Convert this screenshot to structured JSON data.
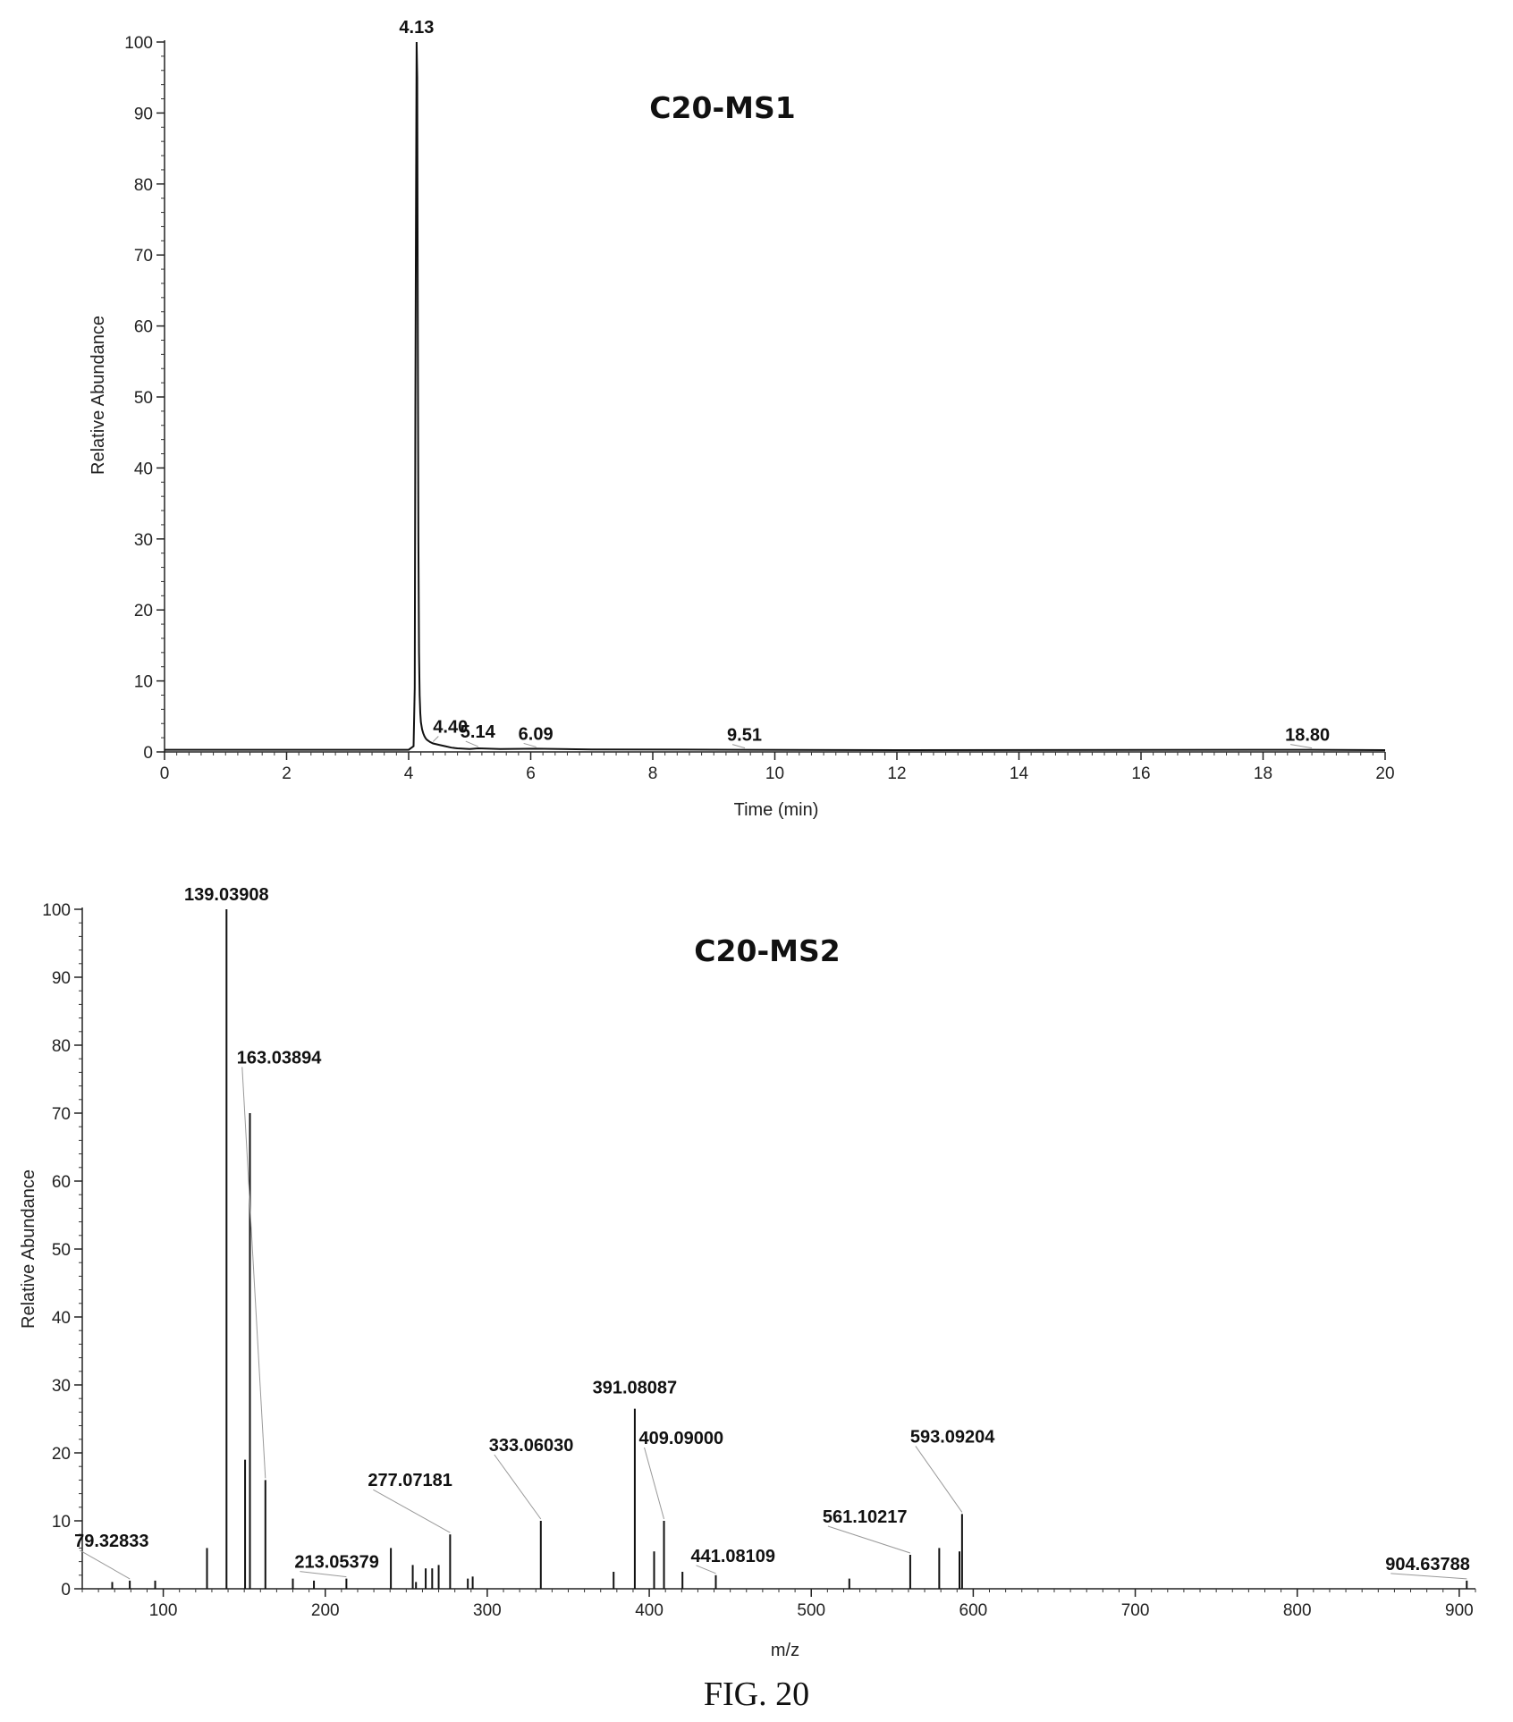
{
  "figure_caption": "FIG. 20",
  "chart_data": [
    {
      "type": "line",
      "title": "C20-MS1",
      "xlabel": "Time (min)",
      "ylabel": "Relative Abundance",
      "xlim": [
        0,
        20
      ],
      "ylim": [
        0,
        100
      ],
      "x_ticks": [
        0,
        2,
        4,
        6,
        8,
        10,
        12,
        14,
        16,
        18,
        20
      ],
      "y_ticks": [
        0,
        10,
        20,
        30,
        40,
        50,
        60,
        70,
        80,
        90,
        100
      ],
      "grid": false,
      "series": [
        {
          "x": [
            0,
            4.0,
            4.08,
            4.1,
            4.11,
            4.12,
            4.13,
            4.14,
            4.15,
            4.16,
            4.17,
            4.18,
            4.19,
            4.2,
            4.22,
            4.24,
            4.26,
            4.28,
            4.3,
            4.35,
            4.4,
            4.5,
            4.6,
            4.7,
            4.8,
            5.0,
            5.14,
            5.5,
            6.09,
            7.0,
            9.51,
            12,
            18.8,
            20
          ],
          "y": [
            0.3,
            0.3,
            0.8,
            9,
            48,
            76,
            100,
            95,
            62,
            30,
            14,
            8,
            5.5,
            4.2,
            3.2,
            2.6,
            2.2,
            1.9,
            1.7,
            1.4,
            1.2,
            1.0,
            0.8,
            0.6,
            0.5,
            0.4,
            0.5,
            0.4,
            0.45,
            0.35,
            0.3,
            0.25,
            0.3,
            0.25
          ]
        }
      ],
      "peak_labels": [
        {
          "text": "4.13",
          "x": 4.13,
          "y": 100
        },
        {
          "text": "4.40",
          "x": 4.4,
          "y": 1.2
        },
        {
          "text": "5.14",
          "x": 5.14,
          "y": 0.5
        },
        {
          "text": "6.09",
          "x": 6.09,
          "y": 0.45
        },
        {
          "text": "9.51",
          "x": 9.51,
          "y": 0.3
        },
        {
          "text": "18.80",
          "x": 18.8,
          "y": 0.3
        }
      ]
    },
    {
      "type": "bar",
      "title": "C20-MS2",
      "xlabel": "m/z",
      "ylabel": "Relative Abundance",
      "xlim": [
        50,
        910
      ],
      "ylim": [
        0,
        100
      ],
      "x_ticks": [
        100,
        200,
        300,
        400,
        500,
        600,
        700,
        800,
        900
      ],
      "y_ticks": [
        0,
        10,
        20,
        30,
        40,
        50,
        60,
        70,
        80,
        90,
        100
      ],
      "grid": false,
      "series": [
        {
          "x": [
            68.5,
            79.33,
            95,
            127,
            139.04,
            150.5,
            153.5,
            163.04,
            180,
            193,
            213.05,
            240.5,
            254,
            256,
            262,
            266,
            270,
            277.07,
            288,
            291,
            333.06,
            378,
            391.08,
            403,
            409.09,
            420.5,
            441.08,
            523.5,
            561.1,
            579,
            591.5,
            593.09,
            904.64
          ],
          "y": [
            1,
            1.2,
            1.2,
            6,
            100,
            19,
            70,
            16,
            1.5,
            1.2,
            1.5,
            6,
            3.5,
            1,
            3,
            3,
            3.5,
            8,
            1.5,
            1.8,
            10,
            2.5,
            26.5,
            5.5,
            10,
            2.5,
            2,
            1.5,
            5,
            6,
            5.5,
            11,
            1.2
          ]
        }
      ],
      "peak_labels": [
        {
          "text": "79.32833",
          "x": 79.33,
          "y": 1.2
        },
        {
          "text": "139.03908",
          "x": 139.04,
          "y": 100
        },
        {
          "text": "163.03894",
          "x": 163.04,
          "y": 16
        },
        {
          "text": "213.05379",
          "x": 213.05,
          "y": 1.5
        },
        {
          "text": "277.07181",
          "x": 277.07,
          "y": 8
        },
        {
          "text": "333.06030",
          "x": 333.06,
          "y": 10
        },
        {
          "text": "391.08087",
          "x": 391.08,
          "y": 26.5
        },
        {
          "text": "409.09000",
          "x": 409.09,
          "y": 10
        },
        {
          "text": "441.08109",
          "x": 441.08,
          "y": 2
        },
        {
          "text": "561.10217",
          "x": 561.1,
          "y": 5
        },
        {
          "text": "593.09204",
          "x": 593.09,
          "y": 11
        },
        {
          "text": "904.63788",
          "x": 904.64,
          "y": 1.2
        }
      ]
    }
  ]
}
